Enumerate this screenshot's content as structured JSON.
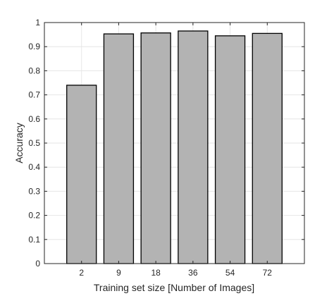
{
  "chart_data": {
    "type": "bar",
    "categories": [
      "2",
      "9",
      "18",
      "36",
      "54",
      "72"
    ],
    "values": [
      0.74,
      0.953,
      0.957,
      0.965,
      0.945,
      0.955
    ],
    "xlabel": "Training set size [Number of Images]",
    "ylabel": "Accuracy",
    "ylim": [
      0,
      1
    ],
    "yticks": [
      "0",
      "0.1",
      "0.2",
      "0.3",
      "0.4",
      "0.5",
      "0.6",
      "0.7",
      "0.8",
      "0.9",
      "1"
    ],
    "grid": true,
    "bar_color": "#b3b3b3",
    "edge_color": "#000000"
  }
}
